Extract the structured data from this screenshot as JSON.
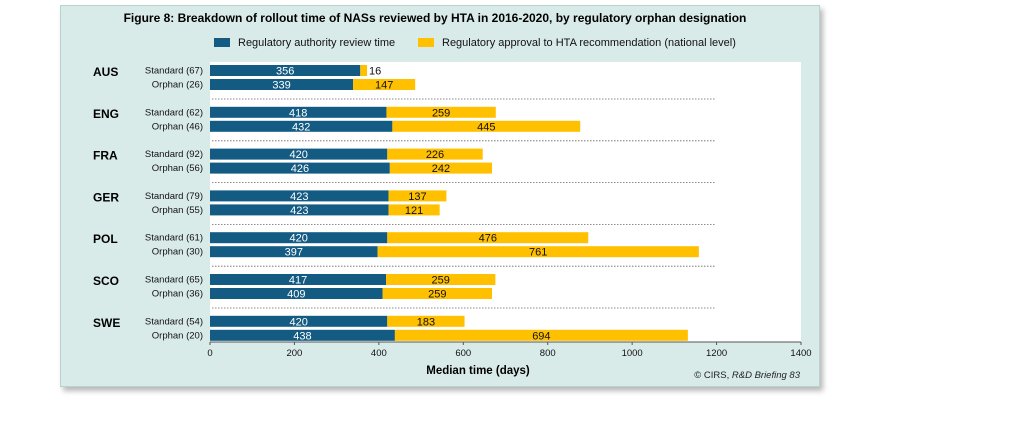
{
  "colors": {
    "review": "#145b83",
    "approval": "#ffc000",
    "panel": "#d9ebe9"
  },
  "chart_data": {
    "type": "bar",
    "orientation": "horizontal-stacked",
    "title": "Figure 8: Breakdown of rollout time of NASs reviewed by HTA in 2016-2020, by regulatory orphan designation",
    "xlabel": "Median time (days)",
    "xlim": [
      0,
      1400
    ],
    "xticks": [
      0,
      200,
      400,
      600,
      800,
      1000,
      1200,
      1400
    ],
    "legend_placement": "top",
    "series": [
      {
        "name": "Regulatory authority review time",
        "key": "review"
      },
      {
        "name": "Regulatory approval to HTA recommendation (national level)",
        "key": "approval"
      }
    ],
    "groups": [
      {
        "country": "AUS",
        "rows": [
          {
            "label": "Standard (67)",
            "review": 356,
            "approval": 16
          },
          {
            "label": "Orphan (26)",
            "review": 339,
            "approval": 147
          }
        ]
      },
      {
        "country": "ENG",
        "rows": [
          {
            "label": "Standard (62)",
            "review": 418,
            "approval": 259
          },
          {
            "label": "Orphan (46)",
            "review": 432,
            "approval": 445
          }
        ]
      },
      {
        "country": "FRA",
        "rows": [
          {
            "label": "Standard (92)",
            "review": 420,
            "approval": 226
          },
          {
            "label": "Orphan (56)",
            "review": 426,
            "approval": 242
          }
        ]
      },
      {
        "country": "GER",
        "rows": [
          {
            "label": "Standard (79)",
            "review": 423,
            "approval": 137
          },
          {
            "label": "Orphan (55)",
            "review": 423,
            "approval": 121
          }
        ]
      },
      {
        "country": "POL",
        "rows": [
          {
            "label": "Standard (61)",
            "review": 420,
            "approval": 476
          },
          {
            "label": "Orphan (30)",
            "review": 397,
            "approval": 761
          }
        ]
      },
      {
        "country": "SCO",
        "rows": [
          {
            "label": "Standard (65)",
            "review": 417,
            "approval": 259
          },
          {
            "label": "Orphan (36)",
            "review": 409,
            "approval": 259
          }
        ]
      },
      {
        "country": "SWE",
        "rows": [
          {
            "label": "Standard (54)",
            "review": 420,
            "approval": 183
          },
          {
            "label": "Orphan (20)",
            "review": 438,
            "approval": 694
          }
        ]
      }
    ],
    "source_note": "© CIRS, R&D Briefing 83"
  }
}
